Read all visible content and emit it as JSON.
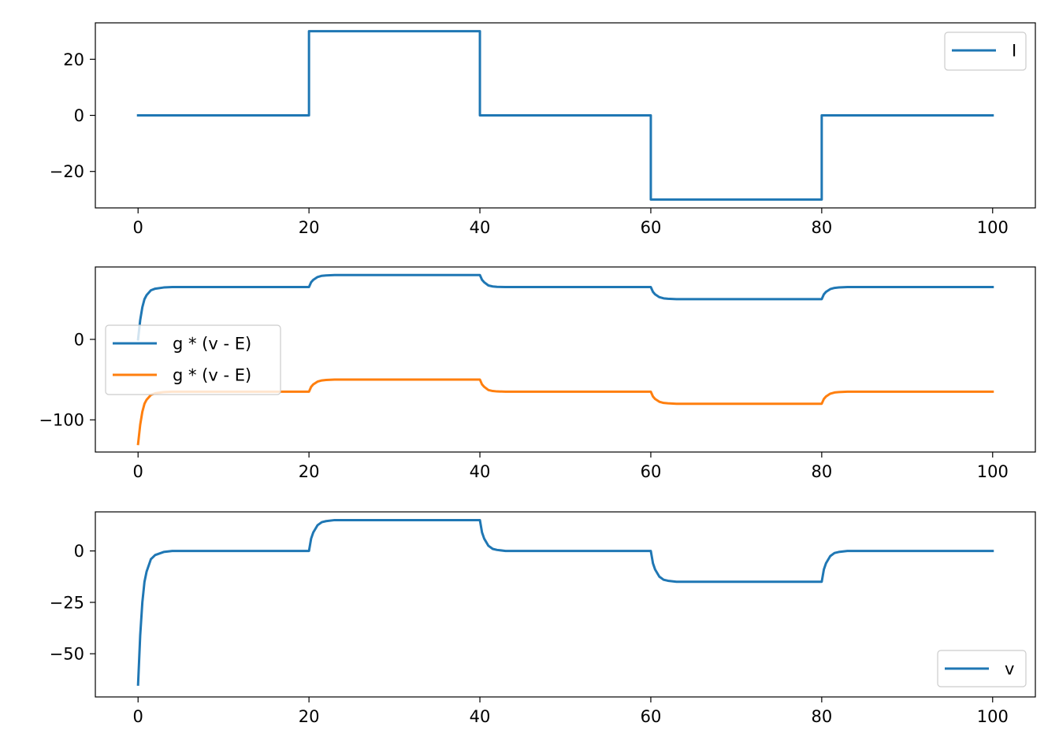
{
  "colors": {
    "blue": "#1f77b4",
    "orange": "#ff7f0e"
  },
  "chart_data": [
    {
      "type": "line",
      "xlim": [
        -5,
        105
      ],
      "ylim": [
        -33,
        33
      ],
      "xticks": [
        0,
        20,
        40,
        60,
        80,
        100
      ],
      "xtick_labels": [
        "0",
        "20",
        "40",
        "60",
        "80",
        "100"
      ],
      "yticks": [
        20,
        0,
        -20
      ],
      "ytick_labels": [
        "20",
        "0",
        "−20"
      ],
      "legend_position": "upper right",
      "grid": false,
      "series": [
        {
          "name": "I",
          "color": "#1f77b4",
          "x": [
            0,
            20,
            20,
            40,
            40,
            60,
            60,
            80,
            80,
            100
          ],
          "y": [
            0,
            0,
            30,
            30,
            0,
            0,
            -30,
            -30,
            0,
            0
          ]
        }
      ]
    },
    {
      "type": "line",
      "xlim": [
        -5,
        105
      ],
      "ylim": [
        -140,
        90
      ],
      "xticks": [
        0,
        20,
        40,
        60,
        80,
        100
      ],
      "xtick_labels": [
        "0",
        "20",
        "40",
        "60",
        "80",
        "100"
      ],
      "yticks": [
        0,
        -100
      ],
      "ytick_labels": [
        "0",
        "−100"
      ],
      "legend_position": "center left",
      "grid": false,
      "series": [
        {
          "name": "g * (v - E)",
          "color": "#1f77b4",
          "x": [
            0,
            0.25,
            0.5,
            0.75,
            1,
            1.5,
            2,
            3,
            4,
            20,
            20.25,
            20.5,
            21,
            21.5,
            22,
            23,
            40,
            40.25,
            40.5,
            41,
            41.5,
            42,
            43,
            60,
            60.25,
            60.5,
            61,
            61.5,
            62,
            63,
            80,
            80.25,
            80.5,
            81,
            81.5,
            82,
            83,
            100
          ],
          "y": [
            0,
            24,
            40,
            50,
            55,
            61,
            63,
            64.5,
            65,
            65,
            71,
            74,
            77.5,
            79,
            79.5,
            80,
            80,
            74,
            71,
            67,
            65.8,
            65.3,
            65,
            65,
            59,
            56,
            52.5,
            51,
            50.5,
            50,
            50,
            56,
            59,
            62.5,
            64,
            64.5,
            65,
            65
          ]
        },
        {
          "name": "g * (v - E)",
          "color": "#ff7f0e",
          "x": [
            0,
            0.25,
            0.5,
            0.75,
            1,
            1.5,
            2,
            3,
            4,
            20,
            20.25,
            20.5,
            21,
            21.5,
            22,
            23,
            40,
            40.25,
            40.5,
            41,
            41.5,
            42,
            43,
            60,
            60.25,
            60.5,
            61,
            61.5,
            62,
            63,
            80,
            80.25,
            80.5,
            81,
            81.5,
            82,
            83,
            100
          ],
          "y": [
            -130,
            -106,
            -90,
            -80,
            -75,
            -69,
            -67,
            -65.5,
            -65,
            -65,
            -59,
            -56,
            -52.5,
            -51,
            -50.5,
            -50,
            -50,
            -56,
            -59,
            -63,
            -64.2,
            -64.7,
            -65,
            -65,
            -71,
            -74,
            -77.5,
            -79,
            -79.5,
            -80,
            -80,
            -74,
            -71,
            -67.5,
            -66,
            -65.5,
            -65,
            -65
          ]
        }
      ]
    },
    {
      "type": "line",
      "xlim": [
        -5,
        105
      ],
      "ylim": [
        -71,
        19
      ],
      "xticks": [
        0,
        20,
        40,
        60,
        80,
        100
      ],
      "xtick_labels": [
        "0",
        "20",
        "40",
        "60",
        "80",
        "100"
      ],
      "yticks": [
        0,
        -25,
        -50
      ],
      "ytick_labels": [
        "0",
        "−25",
        "−50"
      ],
      "legend_position": "lower right",
      "grid": false,
      "series": [
        {
          "name": "v",
          "color": "#1f77b4",
          "x": [
            0,
            0.25,
            0.5,
            0.75,
            1,
            1.5,
            2,
            3,
            4,
            20,
            20.25,
            20.5,
            21,
            21.5,
            22,
            23,
            40,
            40.25,
            40.5,
            41,
            41.5,
            42,
            43,
            60,
            60.25,
            60.5,
            61,
            61.5,
            62,
            63,
            80,
            80.25,
            80.5,
            81,
            81.5,
            82,
            83,
            100
          ],
          "y": [
            -65,
            -41,
            -25,
            -15,
            -10,
            -4,
            -2,
            -0.5,
            0,
            0,
            6,
            9,
            12.5,
            14,
            14.5,
            15,
            15,
            9,
            6,
            2.5,
            1,
            0.5,
            0,
            0,
            -6,
            -9,
            -12.5,
            -14,
            -14.5,
            -15,
            -15,
            -9,
            -6,
            -2.5,
            -1,
            -0.5,
            0,
            0
          ]
        }
      ]
    }
  ]
}
